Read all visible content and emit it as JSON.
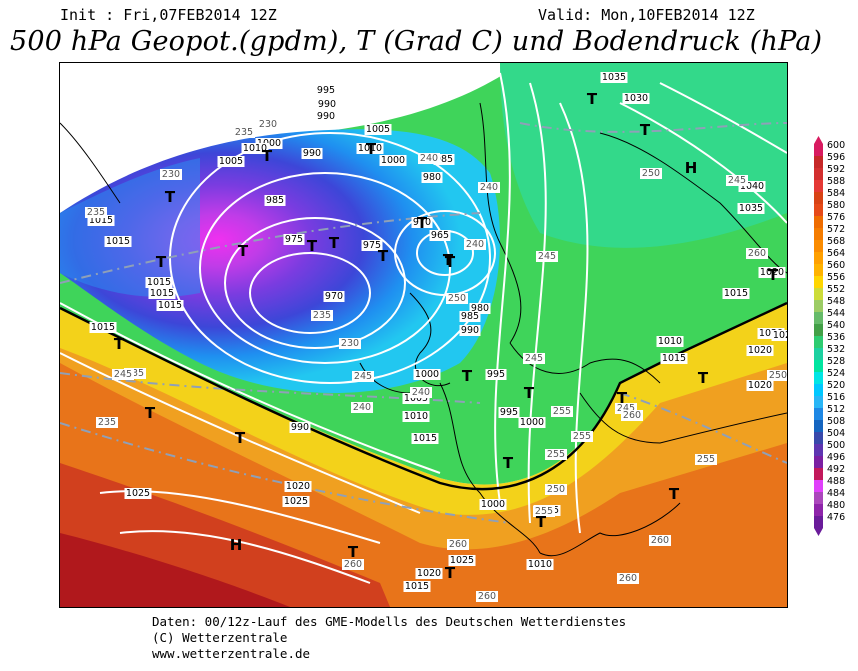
{
  "header": {
    "init": "Init : Fri,07FEB2014 12Z",
    "valid": "Valid: Mon,10FEB2014 12Z",
    "title": "500 hPa Geopot.(gpdm), T (Grad C) und Bodendruck (hPa)"
  },
  "footer": {
    "line1": "Daten: 00/12z-Lauf des GME-Modells des Deutschen Wetterdienstes",
    "line2": "(C) Wetterzentrale",
    "line3": "www.wetterzentrale.de"
  },
  "scale": {
    "ticks": [
      "600",
      "596",
      "592",
      "588",
      "584",
      "580",
      "576",
      "572",
      "568",
      "564",
      "560",
      "556",
      "552",
      "548",
      "544",
      "540",
      "536",
      "532",
      "528",
      "524",
      "520",
      "516",
      "512",
      "508",
      "504",
      "500",
      "496",
      "492",
      "488",
      "484",
      "480",
      "476"
    ],
    "colors": [
      "#d81b60",
      "#c62828",
      "#d32f2f",
      "#e53935",
      "#d84315",
      "#e64a19",
      "#ef6c00",
      "#f57c00",
      "#fb8c00",
      "#ffa000",
      "#ffb300",
      "#ffd600",
      "#cddc39",
      "#9ccc65",
      "#66bb6a",
      "#43a047",
      "#2ecc71",
      "#1dd1a1",
      "#00e5a0",
      "#00e5e5",
      "#00c8ff",
      "#29b6f6",
      "#1e88e5",
      "#1565c0",
      "#3949ab",
      "#5e35b1",
      "#7b1fa2",
      "#c2185b",
      "#e040fb",
      "#ab47bc",
      "#8e24aa",
      "#6a1b9a"
    ]
  },
  "pressure_labels": [
    "995",
    "990",
    "990",
    "1005",
    "1000",
    "1010",
    "1010",
    "1005",
    "990",
    "1000",
    "985",
    "980",
    "985",
    "970",
    "965",
    "975",
    "975",
    "970",
    "980",
    "985",
    "990",
    "1015",
    "1015",
    "1015",
    "1015",
    "1015",
    "1015",
    "1000",
    "1005",
    "995",
    "995",
    "1000",
    "1010",
    "1015",
    "990",
    "1025",
    "1020",
    "1025",
    "1035",
    "1030",
    "1040",
    "1035",
    "1020",
    "1015",
    "1010",
    "1015",
    "1020",
    "1020",
    "1020",
    "1020",
    "1000",
    "1005",
    "1010",
    "1025",
    "1020",
    "1015"
  ],
  "temperature_labels": [
    "230",
    "235",
    "235",
    "230",
    "240",
    "240",
    "245",
    "250",
    "260",
    "245",
    "240",
    "250",
    "235",
    "230",
    "245",
    "240",
    "240",
    "245",
    "255",
    "255",
    "250",
    "255",
    "260",
    "255",
    "260",
    "260",
    "260",
    "260",
    "245",
    "235",
    "235",
    "245",
    "255",
    "260",
    "255",
    "250"
  ],
  "centers": [
    {
      "type": "T",
      "name": "low"
    },
    {
      "type": "H",
      "name": "high"
    }
  ]
}
